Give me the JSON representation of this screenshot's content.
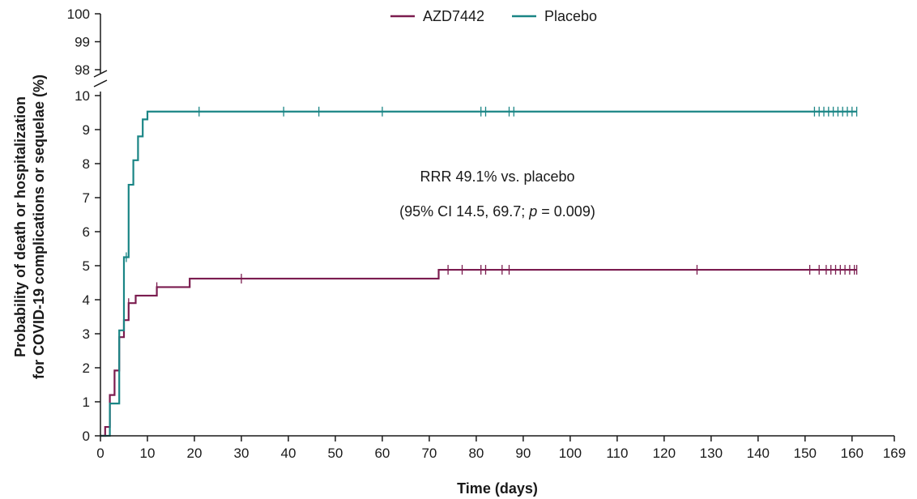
{
  "chart_data": {
    "type": "line",
    "xlabel": "Time (days)",
    "ylabel_line1": "Probability of death or hospitalization",
    "ylabel_line2": "for COVID-19 complications or sequelae (%)",
    "x_ticks": [
      0,
      10,
      20,
      30,
      40,
      50,
      60,
      70,
      80,
      90,
      100,
      110,
      120,
      130,
      140,
      150,
      160,
      169
    ],
    "xlim": [
      0,
      169
    ],
    "y_ticks_lower": [
      0,
      1,
      2,
      3,
      4,
      5,
      6,
      7,
      8,
      9,
      10
    ],
    "y_ticks_upper": [
      98,
      99,
      100
    ],
    "ylim_lower": [
      0,
      10
    ],
    "ylim_upper": [
      98,
      100
    ],
    "y_axis_break": true,
    "legend_position": "top-center",
    "annotation": {
      "line1": "RRR 49.1% vs. placebo",
      "line2_prefix": "(95% CI 14.5, 69.7; ",
      "line2_italic": "p",
      "line2_suffix": " = 0.009)"
    },
    "series": [
      {
        "name": "AZD7442",
        "color": "#7b1c4f",
        "steps": [
          [
            0,
            0
          ],
          [
            1,
            0.26
          ],
          [
            2,
            1.2
          ],
          [
            3,
            1.92
          ],
          [
            4,
            2.9
          ],
          [
            5,
            3.4
          ],
          [
            6,
            3.9
          ],
          [
            7.5,
            4.12
          ],
          [
            12,
            4.37
          ],
          [
            19,
            4.62
          ],
          [
            72,
            4.88
          ],
          [
            161,
            4.88
          ]
        ],
        "censor_x": [
          6,
          12,
          30,
          74,
          77,
          81,
          82,
          85.5,
          87,
          127,
          151,
          153,
          154.5,
          155.5,
          156.5,
          157.5,
          158.5,
          159.5,
          160.5,
          161
        ]
      },
      {
        "name": "Placebo",
        "color": "#1a8585",
        "steps": [
          [
            0,
            0
          ],
          [
            2,
            0.95
          ],
          [
            4,
            3.1
          ],
          [
            5,
            5.25
          ],
          [
            6,
            7.38
          ],
          [
            7,
            8.1
          ],
          [
            8,
            8.8
          ],
          [
            9,
            9.3
          ],
          [
            10,
            9.53
          ],
          [
            161,
            9.53
          ]
        ],
        "censor_x": [
          5.5,
          21,
          39,
          46.5,
          60,
          81,
          82,
          87,
          88,
          152,
          153,
          154,
          155,
          156,
          157,
          158,
          159,
          160,
          161
        ]
      }
    ]
  }
}
